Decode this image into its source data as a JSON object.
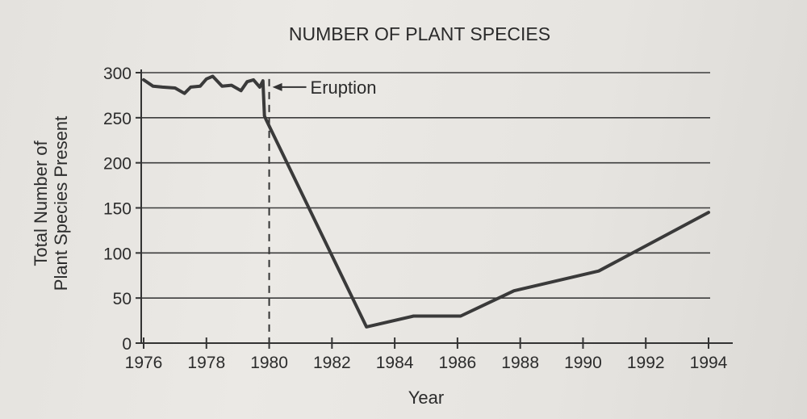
{
  "chart_data": {
    "type": "line",
    "title": "NUMBER OF PLANT SPECIES",
    "xlabel": "Year",
    "ylabel": "Total Number of Plant Species Present",
    "ylabel_lines": [
      "Total Number of",
      "Plant Species Present"
    ],
    "xlim": [
      1976,
      1994
    ],
    "ylim": [
      0,
      300
    ],
    "x_ticks": [
      1976,
      1978,
      1980,
      1982,
      1984,
      1986,
      1988,
      1990,
      1992,
      1994
    ],
    "x_tick_labels": [
      "1976",
      "1978",
      "1980",
      "1982",
      "1984",
      "1986",
      "1988",
      "1990",
      "1992",
      "1994"
    ],
    "y_ticks": [
      0,
      50,
      100,
      150,
      200,
      250,
      300
    ],
    "y_tick_labels": [
      "0",
      "50",
      "100",
      "150",
      "200",
      "250",
      "300"
    ],
    "grid": true,
    "series": [
      {
        "name": "Number of plant species",
        "x": [
          1976,
          1976.3,
          1976.6,
          1977,
          1977.3,
          1977.5,
          1977.8,
          1978,
          1978.2,
          1978.5,
          1978.8,
          1979.1,
          1979.3,
          1979.5,
          1979.7,
          1979.8,
          1979.85,
          1979.9,
          1983.1,
          1984.6,
          1986.1,
          1987.8,
          1990.5,
          1994
        ],
        "values": [
          292,
          285,
          284,
          283,
          277,
          284,
          285,
          293,
          296,
          285,
          286,
          280,
          290,
          292,
          284,
          291,
          252,
          248,
          18,
          30,
          30,
          58,
          80,
          145
        ]
      }
    ],
    "annotations": [
      {
        "text": "Eruption",
        "x": 1980,
        "y": 293,
        "style": "arrow",
        "marker": "dashed vertical line at 1980"
      }
    ]
  }
}
